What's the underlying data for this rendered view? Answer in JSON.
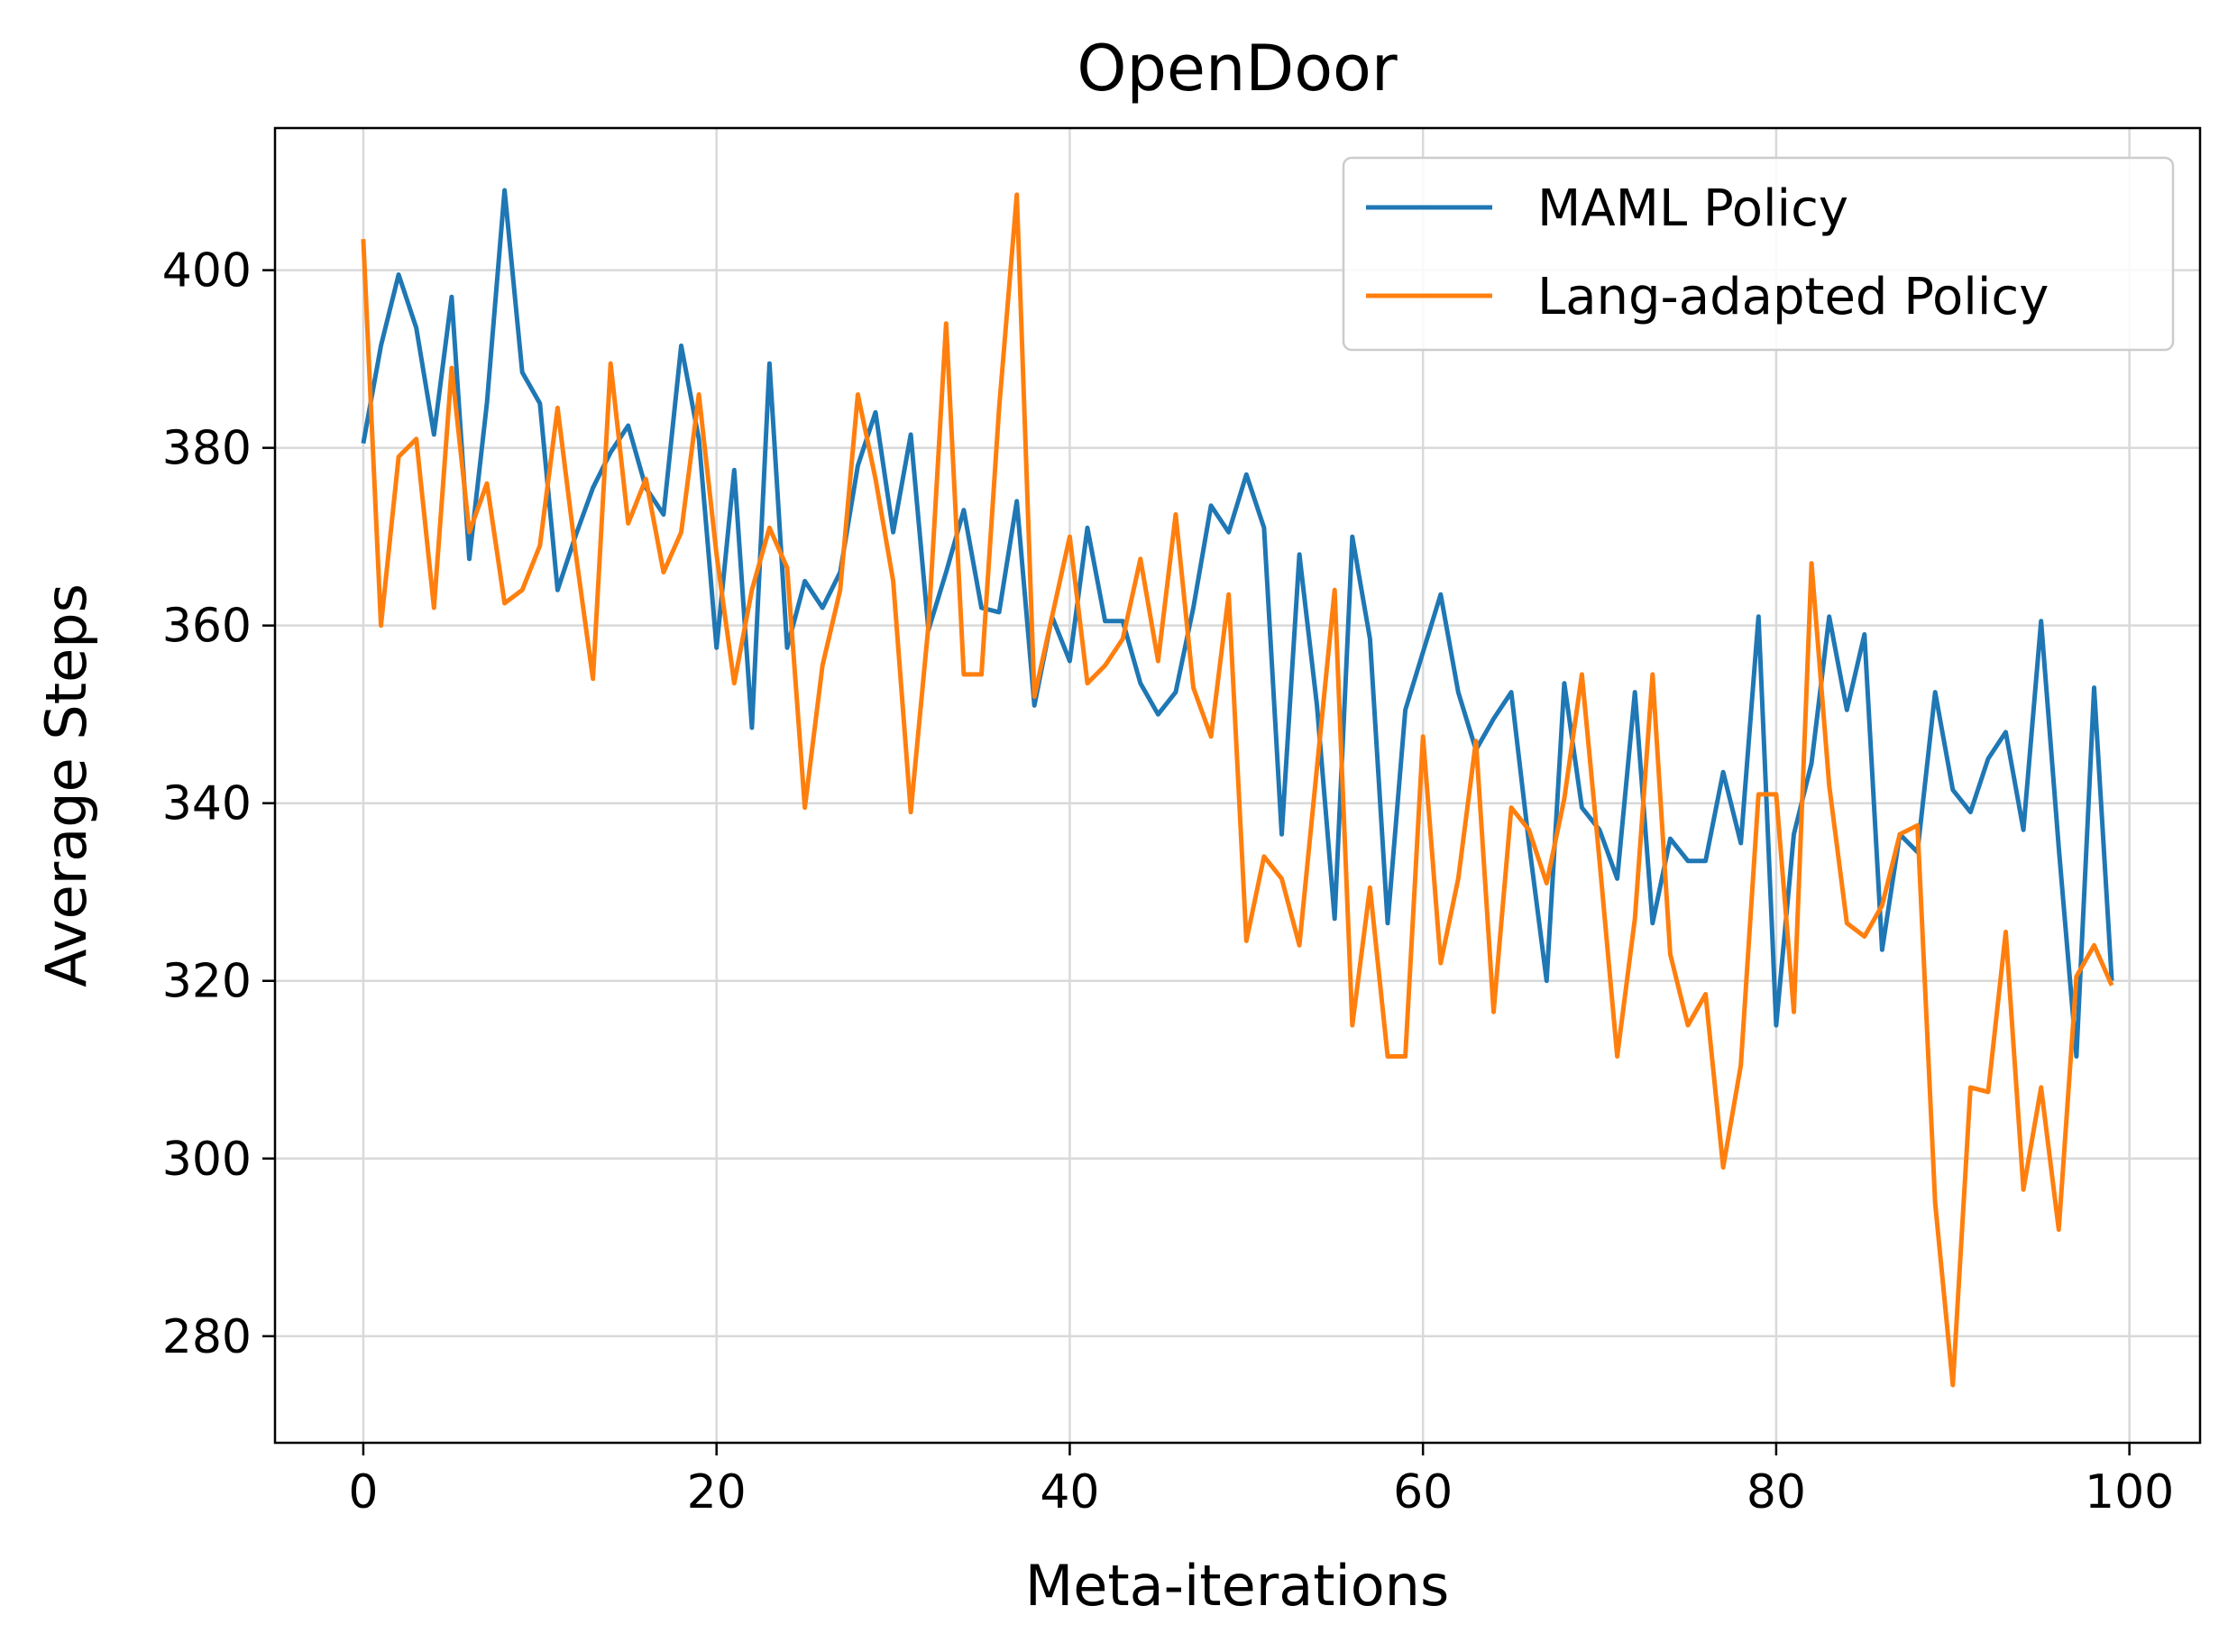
{
  "chart_data": {
    "type": "line",
    "title": "OpenDoor",
    "xlabel": "Meta-iterations",
    "ylabel": "Average Steps",
    "xlim": [
      -5,
      104
    ],
    "ylim": [
      268,
      416
    ],
    "xticks": [
      0,
      20,
      40,
      60,
      80,
      100
    ],
    "yticks": [
      280,
      300,
      320,
      340,
      360,
      380,
      400
    ],
    "grid": true,
    "legend_position": "upper right",
    "series": [
      {
        "name": "MAML Policy",
        "color": "#1f77b4",
        "x": [
          0,
          1,
          2,
          3,
          4,
          5,
          6,
          7,
          8,
          9,
          10,
          11,
          12,
          13,
          14,
          15,
          16,
          17,
          18,
          19,
          20,
          21,
          22,
          23,
          24,
          25,
          26,
          27,
          28,
          29,
          30,
          31,
          32,
          33,
          34,
          35,
          36,
          37,
          38,
          39,
          40,
          41,
          42,
          43,
          44,
          45,
          46,
          47,
          48,
          49,
          50,
          51,
          52,
          53,
          54,
          55,
          56,
          57,
          58,
          59,
          60,
          61,
          62,
          63,
          64,
          65,
          66,
          67,
          68,
          69,
          70,
          71,
          72,
          73,
          74,
          75,
          76,
          77,
          78,
          79,
          80,
          81,
          82,
          83,
          84,
          85,
          86,
          87,
          88,
          89,
          90,
          91,
          92,
          93,
          94,
          95,
          96,
          97,
          98,
          99
        ],
        "values": [
          380.5,
          391.5,
          399.5,
          393.5,
          381.5,
          397,
          367.5,
          385,
          409,
          388.5,
          385,
          364,
          370,
          375.5,
          379.5,
          382.5,
          375.5,
          372.5,
          391.5,
          381,
          357.5,
          377.5,
          348.5,
          389.5,
          357.5,
          365,
          362,
          366,
          378,
          384,
          370.5,
          381.5,
          359.5,
          366,
          373,
          362,
          361.5,
          374,
          351,
          361,
          356,
          371,
          360.5,
          360.5,
          353.5,
          350,
          352.5,
          362,
          373.5,
          370.5,
          377,
          371,
          336.5,
          368,
          351,
          327,
          370,
          358.5,
          326.5,
          350.5,
          357,
          363.5,
          352.5,
          346,
          349.5,
          352.5,
          335.5,
          320,
          353.5,
          339.5,
          337,
          331.5,
          352.5,
          326.5,
          336,
          333.5,
          333.5,
          343.5,
          335.5,
          361,
          315,
          336.5,
          344.5,
          361,
          350.5,
          359,
          323.5,
          336.5,
          334.5,
          352.5,
          341.5,
          339,
          345,
          348,
          337,
          360.5,
          335,
          311.5,
          353,
          320
        ]
      },
      {
        "name": "Lang-adapted Policy",
        "color": "#ff7f0e",
        "x": [
          0,
          1,
          2,
          3,
          4,
          5,
          6,
          7,
          8,
          9,
          10,
          11,
          12,
          13,
          14,
          15,
          16,
          17,
          18,
          19,
          20,
          21,
          22,
          23,
          24,
          25,
          26,
          27,
          28,
          29,
          30,
          31,
          32,
          33,
          34,
          35,
          36,
          37,
          38,
          39,
          40,
          41,
          42,
          43,
          44,
          45,
          46,
          47,
          48,
          49,
          50,
          51,
          52,
          53,
          54,
          55,
          56,
          57,
          58,
          59,
          60,
          61,
          62,
          63,
          64,
          65,
          66,
          67,
          68,
          69,
          70,
          71,
          72,
          73,
          74,
          75,
          76,
          77,
          78,
          79,
          80,
          81,
          82,
          83,
          84,
          85,
          86,
          87,
          88,
          89,
          90,
          91,
          92,
          93,
          94,
          95,
          96,
          97,
          98,
          99
        ],
        "values": [
          403.5,
          360,
          379,
          381,
          362,
          389,
          370.5,
          376,
          362.5,
          364,
          369,
          384.5,
          368.5,
          354,
          389.5,
          371.5,
          376.5,
          366,
          370.5,
          386,
          368,
          353.5,
          364,
          371,
          366.5,
          339.5,
          355.5,
          364,
          386,
          376.5,
          365,
          339,
          360,
          394,
          354.5,
          354.5,
          384.5,
          408.5,
          352,
          361,
          370,
          353.5,
          355.5,
          358.5,
          367.5,
          356,
          372.5,
          353,
          347.5,
          363.5,
          324.5,
          334,
          331.5,
          324,
          344,
          364,
          315,
          330.5,
          311.5,
          311.5,
          347.5,
          322,
          331.5,
          347,
          316.5,
          339.5,
          337,
          331,
          340.5,
          354.5,
          333.5,
          311.5,
          327,
          354.5,
          323,
          315,
          318.5,
          299,
          310.5,
          341,
          341,
          316.5,
          367,
          342,
          326.5,
          325,
          328.5,
          336.5,
          337.5,
          295,
          274.5,
          308,
          307.5,
          325.5,
          296.5,
          308,
          292,
          320.5,
          324,
          319.5
        ]
      }
    ]
  }
}
